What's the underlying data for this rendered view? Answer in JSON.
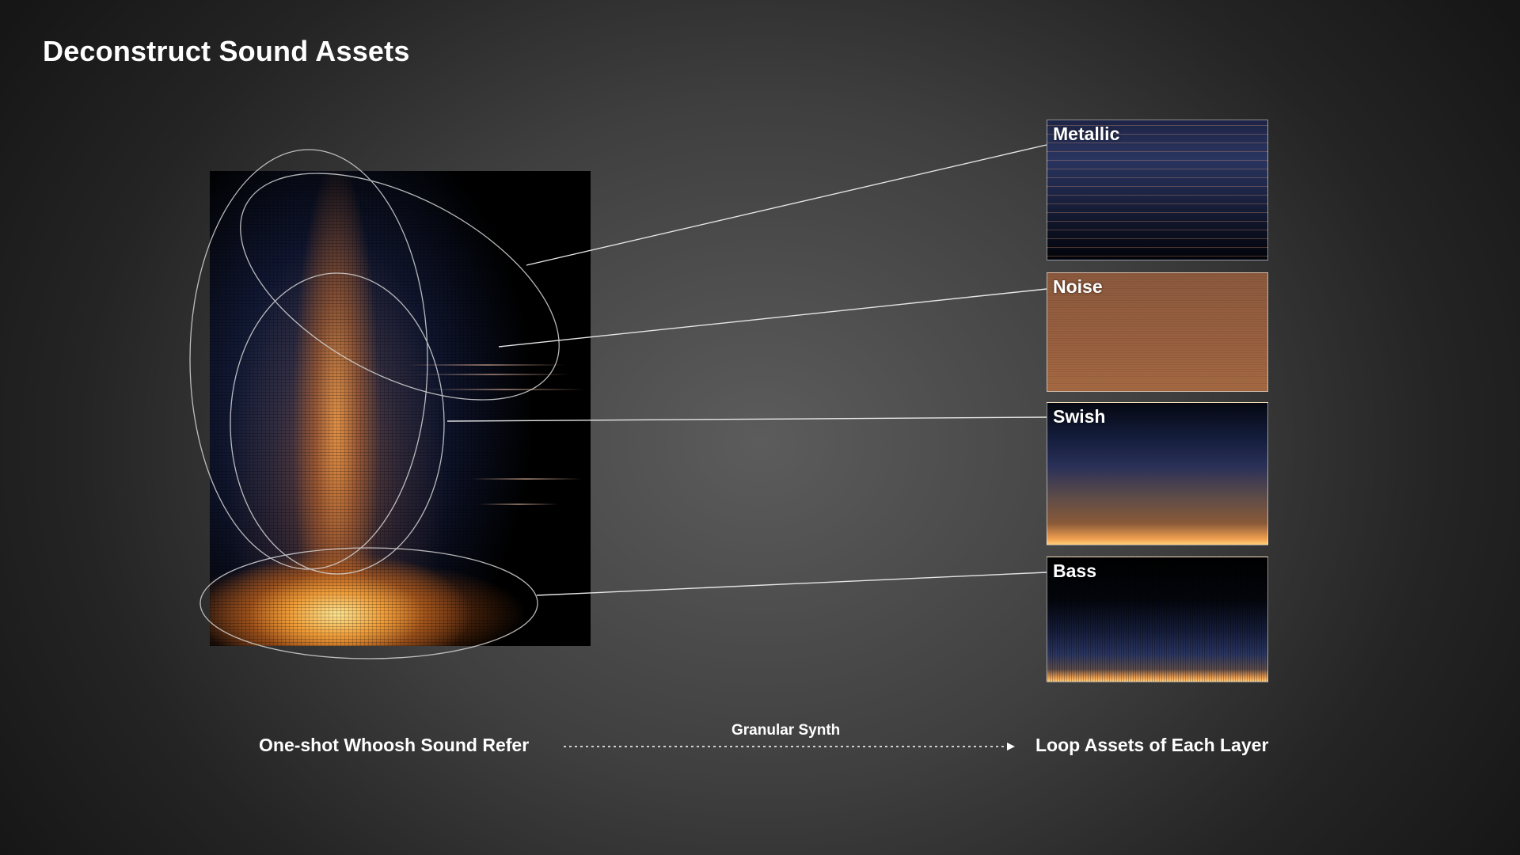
{
  "title": "Deconstruct Sound Assets",
  "source": {
    "label": "One-shot Whoosh Sound Refer"
  },
  "process": {
    "label": "Granular Synth"
  },
  "output": {
    "label": "Loop Assets of Each Layer"
  },
  "layers": [
    {
      "label": "Metallic"
    },
    {
      "label": "Noise"
    },
    {
      "label": "Swish"
    },
    {
      "label": "Bass"
    }
  ],
  "colors": {
    "spectrum_hot": "#ffb347",
    "spectrum_mid": "#c8702c",
    "spectrum_cold": "#1f2a55",
    "outline": "#d8d8d8"
  }
}
